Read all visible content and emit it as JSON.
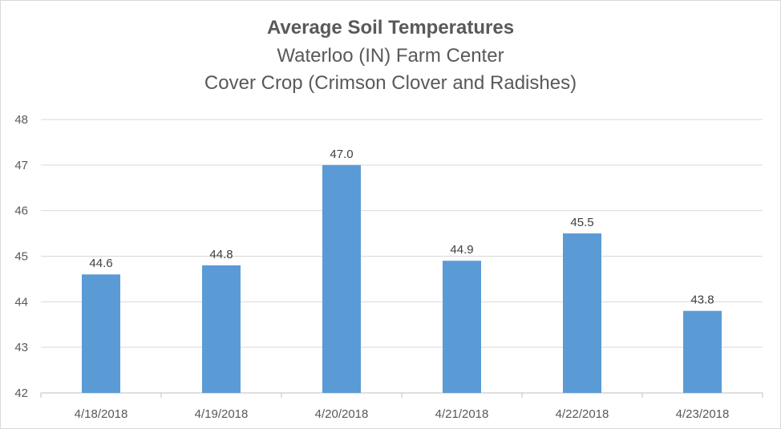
{
  "chart_data": {
    "type": "bar",
    "title": "Average Soil Temperatures",
    "subtitle_lines": [
      "Waterloo (IN) Farm Center",
      "Cover Crop (Crimson Clover and Radishes)"
    ],
    "xlabel": "",
    "ylabel": "",
    "categories": [
      "4/18/2018",
      "4/19/2018",
      "4/20/2018",
      "4/21/2018",
      "4/22/2018",
      "4/23/2018"
    ],
    "values": [
      44.6,
      44.8,
      47.0,
      44.9,
      45.5,
      43.8
    ],
    "data_labels": [
      "44.6",
      "44.8",
      "47.0",
      "44.9",
      "45.5",
      "43.8"
    ],
    "ylim": [
      42,
      48
    ],
    "yticks": [
      "42",
      "43",
      "44",
      "45",
      "46",
      "47",
      "48"
    ],
    "grid": true,
    "legend": "none",
    "bar_color": "#5b9bd5"
  }
}
